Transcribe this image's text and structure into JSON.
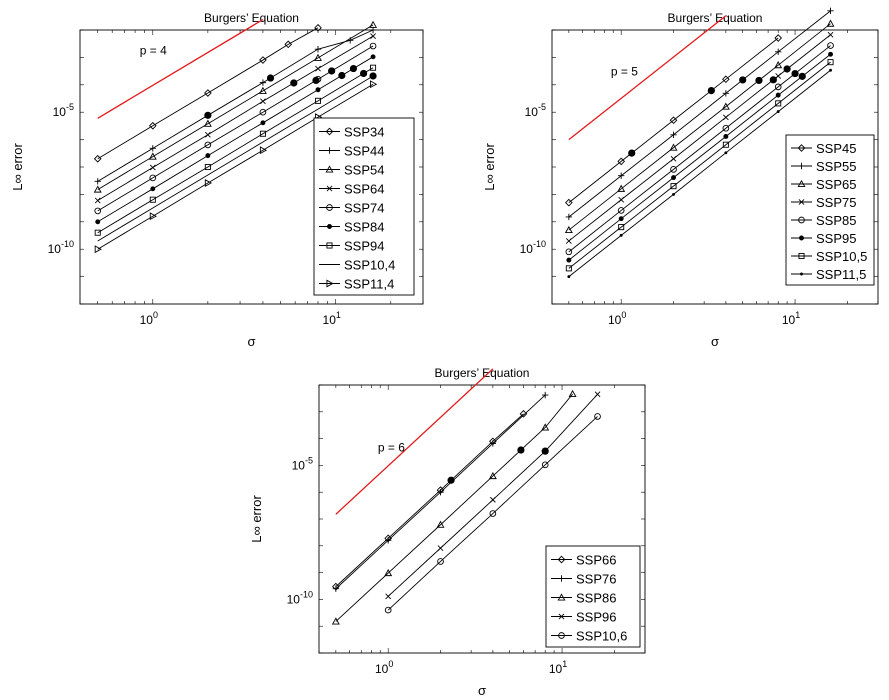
{
  "chart_data": [
    {
      "type": "line",
      "title": "Burgers’ Equation",
      "xlabel": "σ",
      "ylabel": "L∞ error",
      "xscale": "log",
      "yscale": "log",
      "xlim": [
        0.4,
        30
      ],
      "ylim": [
        1e-12,
        0.01
      ],
      "xticks": [
        {
          "value": 1,
          "mant": "10",
          "exp": "0"
        },
        {
          "value": 10,
          "mant": "10",
          "exp": "1"
        }
      ],
      "yticks": [
        {
          "value": 1e-05,
          "mant": "10",
          "exp": "-5"
        },
        {
          "value": 1e-10,
          "mant": "10",
          "exp": "-10"
        }
      ],
      "grid": false,
      "legend_position": "bottom-right",
      "reference": {
        "label": "p = 4",
        "color": "#e41a1c",
        "x": [
          0.5,
          4.0
        ],
        "y": [
          6e-06,
          0.024
        ]
      },
      "series": [
        {
          "name": "SSP34",
          "marker": "diamond",
          "x": [
            0.5,
            1.0,
            2.0,
            4.0,
            5.5,
            8.0
          ],
          "y": [
            2e-07,
            3.2e-06,
            5e-05,
            0.0008,
            0.003,
            0.012
          ],
          "highlight": []
        },
        {
          "name": "SSP44",
          "marker": "plus",
          "x": [
            0.5,
            1.0,
            2.0,
            4.0,
            8.0,
            12.0,
            16.0
          ],
          "y": [
            3e-08,
            4.8e-07,
            7.7e-06,
            0.00012,
            0.002,
            0.0042,
            0.01
          ],
          "highlight": [
            2.0,
            4.4
          ]
        },
        {
          "name": "SSP54",
          "marker": "triangle",
          "x": [
            0.5,
            1.0,
            2.0,
            4.0,
            8.0,
            16.0
          ],
          "y": [
            1.5e-08,
            2.4e-07,
            3.8e-06,
            6e-05,
            0.00096,
            0.0154
          ],
          "highlight": []
        },
        {
          "name": "SSP64",
          "marker": "x",
          "x": [
            0.5,
            1.0,
            2.0,
            4.0,
            8.0,
            16.0
          ],
          "y": [
            6e-09,
            9.6e-08,
            1.5e-06,
            2.5e-05,
            0.00039,
            0.006
          ],
          "highlight": [
            5.9
          ]
        },
        {
          "name": "SSP74",
          "marker": "circle",
          "x": [
            0.5,
            1.0,
            2.0,
            4.0,
            8.0,
            16.0
          ],
          "y": [
            2.5e-09,
            4e-08,
            6.4e-07,
            1e-05,
            0.00016,
            0.0026
          ],
          "highlight": [
            7.8,
            9.5
          ]
        },
        {
          "name": "SSP84",
          "marker": "dot",
          "x": [
            0.5,
            1.0,
            2.0,
            4.0,
            8.0,
            16.0
          ],
          "y": [
            1e-09,
            1.6e-08,
            2.6e-07,
            4.1e-06,
            6.6e-05,
            0.00105
          ],
          "highlight": [
            10.8,
            12.5
          ]
        },
        {
          "name": "SSP94",
          "marker": "square",
          "x": [
            0.5,
            1.0,
            2.0,
            4.0,
            8.0,
            16.0
          ],
          "y": [
            4e-10,
            6.4e-09,
            1e-07,
            1.64e-06,
            2.6e-05,
            0.00042
          ],
          "highlight": [
            14.2
          ]
        },
        {
          "name": "SSP10,4",
          "marker": "none",
          "x": [
            0.5,
            1.0,
            2.0,
            4.0,
            8.0,
            16.0
          ],
          "y": [
            2e-10,
            3.2e-09,
            5.1e-08,
            8.2e-07,
            1.3e-05,
            0.00021
          ],
          "highlight": [
            16.0
          ]
        },
        {
          "name": "SSP11,4",
          "marker": "tri-right",
          "x": [
            0.5,
            1.0,
            2.0,
            4.0,
            8.0,
            16.0
          ],
          "y": [
            1e-10,
            1.6e-09,
            2.6e-08,
            4.1e-07,
            6.6e-06,
            0.000105
          ],
          "highlight": []
        }
      ]
    },
    {
      "type": "line",
      "title": "Burgers’ Equation",
      "xlabel": "σ",
      "ylabel": "L∞ error",
      "xscale": "log",
      "yscale": "log",
      "xlim": [
        0.4,
        30
      ],
      "ylim": [
        1e-12,
        0.01
      ],
      "xticks": [
        {
          "value": 1,
          "mant": "10",
          "exp": "0"
        },
        {
          "value": 10,
          "mant": "10",
          "exp": "1"
        }
      ],
      "yticks": [
        {
          "value": 1e-05,
          "mant": "10",
          "exp": "-5"
        },
        {
          "value": 1e-10,
          "mant": "10",
          "exp": "-10"
        }
      ],
      "grid": false,
      "legend_position": "bottom-right",
      "reference": {
        "label": "p = 5",
        "color": "#e41a1c",
        "x": [
          0.5,
          4.0
        ],
        "y": [
          1e-06,
          0.033
        ]
      },
      "series": [
        {
          "name": "SSP45",
          "marker": "diamond",
          "x": [
            0.5,
            1.0,
            2.0,
            4.0,
            8.0
          ],
          "y": [
            5e-09,
            1.6e-07,
            5.1e-06,
            0.00016,
            0.0051
          ],
          "highlight": [
            1.15,
            3.3
          ]
        },
        {
          "name": "SSP55",
          "marker": "plus",
          "x": [
            0.5,
            1.0,
            2.0,
            4.0,
            8.0,
            16.0
          ],
          "y": [
            1.5e-09,
            4.8e-08,
            1.5e-06,
            4.9e-05,
            0.0016,
            0.05
          ],
          "highlight": [
            5.0
          ]
        },
        {
          "name": "SSP65",
          "marker": "triangle",
          "x": [
            0.5,
            1.0,
            2.0,
            4.0,
            8.0,
            16.0
          ],
          "y": [
            5e-10,
            1.6e-08,
            5.1e-07,
            1.6e-05,
            0.00052,
            0.017
          ],
          "highlight": [
            6.2
          ]
        },
        {
          "name": "SSP75",
          "marker": "x",
          "x": [
            0.5,
            1.0,
            2.0,
            4.0,
            8.0,
            16.0
          ],
          "y": [
            2e-10,
            6.4e-09,
            2e-07,
            6.5e-06,
            0.00021,
            0.0067
          ],
          "highlight": [
            7.5,
            9.0
          ]
        },
        {
          "name": "SSP85",
          "marker": "circle",
          "x": [
            0.5,
            1.0,
            2.0,
            4.0,
            8.0,
            16.0
          ],
          "y": [
            8e-11,
            2.6e-09,
            8.2e-08,
            2.6e-06,
            8.4e-05,
            0.0027
          ],
          "highlight": [
            10.0
          ]
        },
        {
          "name": "SSP95",
          "marker": "dot",
          "x": [
            0.5,
            1.0,
            2.0,
            4.0,
            8.0,
            16.0
          ],
          "y": [
            4e-11,
            1.3e-09,
            4.1e-08,
            1.3e-06,
            4.2e-05,
            0.0013
          ],
          "highlight": [
            11.0
          ]
        },
        {
          "name": "SSP10,5",
          "marker": "square",
          "x": [
            0.5,
            1.0,
            2.0,
            4.0,
            8.0,
            16.0
          ],
          "y": [
            2e-11,
            6.4e-10,
            2e-08,
            6.5e-07,
            2.1e-05,
            0.00067
          ],
          "highlight": []
        },
        {
          "name": "SSP11,5",
          "marker": "dot-small",
          "x": [
            0.5,
            1.0,
            2.0,
            4.0,
            8.0,
            16.0
          ],
          "y": [
            1e-11,
            3.2e-10,
            1e-08,
            3.3e-07,
            1.05e-05,
            0.00034
          ],
          "highlight": []
        }
      ]
    },
    {
      "type": "line",
      "title": "Burgers’ Equation",
      "xlabel": "σ",
      "ylabel": "L∞ error",
      "xscale": "log",
      "yscale": "log",
      "xlim": [
        0.4,
        30
      ],
      "ylim": [
        1e-12,
        0.01
      ],
      "xticks": [
        {
          "value": 1,
          "mant": "10",
          "exp": "0"
        },
        {
          "value": 10,
          "mant": "10",
          "exp": "1"
        }
      ],
      "yticks": [
        {
          "value": 1e-05,
          "mant": "10",
          "exp": "-5"
        },
        {
          "value": 1e-10,
          "mant": "10",
          "exp": "-10"
        }
      ],
      "grid": false,
      "legend_position": "bottom-right",
      "reference": {
        "label": "p = 6",
        "color": "#e41a1c",
        "x": [
          0.5,
          4.0
        ],
        "y": [
          1.5e-07,
          0.04
        ]
      },
      "series": [
        {
          "name": "SSP66",
          "marker": "diamond",
          "x": [
            0.5,
            1.0,
            2.0,
            4.0,
            6.0
          ],
          "y": [
            3e-10,
            1.9e-08,
            1.2e-06,
            7.9e-05,
            0.00084
          ],
          "highlight": [
            2.3
          ]
        },
        {
          "name": "SSP76",
          "marker": "plus",
          "x": [
            0.5,
            1.0,
            2.0,
            4.0,
            8.0
          ],
          "y": [
            2.5e-10,
            1.6e-08,
            1e-06,
            6.6e-05,
            0.0042
          ],
          "highlight": []
        },
        {
          "name": "SSP86",
          "marker": "triangle",
          "x": [
            0.5,
            1.0,
            2.0,
            4.0,
            8.0,
            11.5
          ],
          "y": [
            1.5e-11,
            9.6e-10,
            6.1e-08,
            4e-06,
            0.00026,
            0.0046
          ],
          "highlight": [
            5.8
          ]
        },
        {
          "name": "SSP96",
          "marker": "x",
          "x": [
            1.0,
            2.0,
            4.0,
            8.0,
            16.0
          ],
          "y": [
            1.3e-10,
            8.2e-09,
            5.2e-07,
            3.4e-05,
            0.0045
          ],
          "highlight": [
            8.0
          ]
        },
        {
          "name": "SSP10,6",
          "marker": "circle",
          "x": [
            1.0,
            2.0,
            4.0,
            8.0,
            16.0
          ],
          "y": [
            4e-11,
            2.6e-09,
            1.6e-07,
            1.05e-05,
            0.00067
          ],
          "highlight": []
        }
      ]
    }
  ]
}
